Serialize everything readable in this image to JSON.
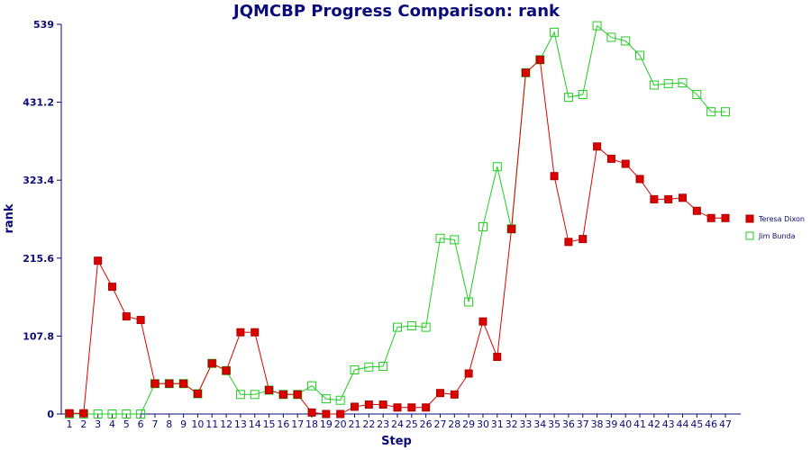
{
  "chart_data": {
    "type": "line",
    "title": "JQMCBP Progress Comparison: rank",
    "xlabel": "Step",
    "ylabel": "rank",
    "ylim": [
      0,
      539
    ],
    "yticks": [
      "0",
      "107.8",
      "215.6",
      "323.4",
      "431.2",
      "539"
    ],
    "x": [
      1,
      2,
      3,
      4,
      5,
      6,
      7,
      8,
      9,
      10,
      11,
      12,
      13,
      14,
      15,
      16,
      17,
      18,
      19,
      20,
      21,
      22,
      23,
      24,
      25,
      26,
      27,
      28,
      29,
      30,
      31,
      32,
      33,
      34,
      35,
      36,
      37,
      38,
      39,
      40,
      41,
      42,
      43,
      44,
      45,
      46,
      47
    ],
    "legend_position": "right",
    "grid": false,
    "series": [
      {
        "name": "Teresa Dixon",
        "color": "#dd0000",
        "marker": "filled-square",
        "values": [
          1,
          1,
          212,
          176,
          135,
          130,
          42,
          42,
          42,
          28,
          70,
          60,
          113,
          113,
          33,
          27,
          27,
          2,
          0,
          0,
          10,
          13,
          13,
          9,
          9,
          9,
          29,
          27,
          56,
          128,
          79,
          256,
          472,
          490,
          329,
          238,
          242,
          370,
          353,
          346,
          325,
          297,
          297,
          299,
          281,
          271,
          271
        ]
      },
      {
        "name": "Jim Bunda",
        "color": "#22cc22",
        "marker": "open-square",
        "values": [
          0,
          0,
          0,
          0,
          0,
          0,
          42,
          42,
          42,
          28,
          70,
          60,
          27,
          27,
          33,
          27,
          27,
          39,
          21,
          19,
          61,
          65,
          66,
          120,
          122,
          120,
          243,
          241,
          155,
          259,
          342,
          256,
          472,
          490,
          528,
          438,
          442,
          537,
          521,
          516,
          496,
          455,
          457,
          458,
          442,
          418,
          418
        ]
      }
    ]
  }
}
